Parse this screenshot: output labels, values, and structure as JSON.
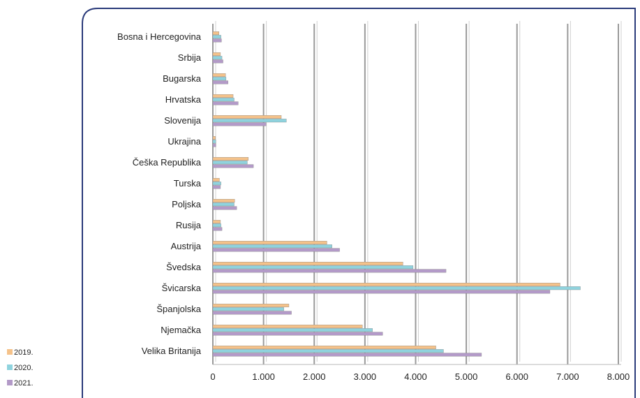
{
  "chart_data": {
    "type": "bar",
    "orientation": "horizontal",
    "categories": [
      "Bosna i Hercegovina",
      "Srbija",
      "Bugarska",
      "Hrvatska",
      "Slovenija",
      "Ukrajina",
      "Češka Republika",
      "Turska",
      "Poljska",
      "Rusija",
      "Austrija",
      "Švedska",
      "Švicarska",
      "Španjolska",
      "Njemačka",
      "Velika Britanija"
    ],
    "series": [
      {
        "name": "2019.",
        "color": "#f5c28a",
        "values": [
          120,
          150,
          250,
          400,
          1350,
          50,
          700,
          130,
          430,
          150,
          2250,
          3750,
          6850,
          1500,
          2950,
          4400
        ]
      },
      {
        "name": "2020.",
        "color": "#8fd3de",
        "values": [
          160,
          180,
          260,
          420,
          1450,
          60,
          680,
          160,
          420,
          160,
          2350,
          3950,
          7250,
          1400,
          3150,
          4550
        ]
      },
      {
        "name": "2021.",
        "color": "#b39ac8",
        "values": [
          170,
          200,
          300,
          500,
          1050,
          60,
          800,
          150,
          470,
          180,
          2500,
          4600,
          6650,
          1550,
          3350,
          5300
        ]
      }
    ],
    "xlim": [
      0,
      8000
    ],
    "xticks": [
      "0",
      "1.000",
      "2.000",
      "3.000",
      "4.000",
      "5.000",
      "6.000",
      "7.000",
      "8.000"
    ],
    "grid": "vertical",
    "legend": "bottom-left"
  }
}
